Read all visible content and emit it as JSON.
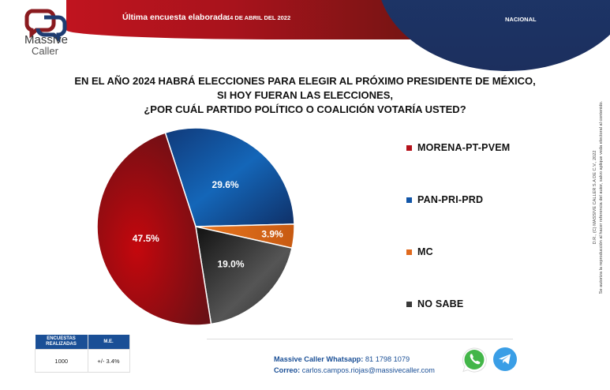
{
  "header": {
    "brand_line1": "Massive",
    "brand_line2": "Caller",
    "survey_label": "Última encuesta elaborada:",
    "survey_date": "14 DE ABRIL DEL 2022",
    "scope": "NACIONAL"
  },
  "question": {
    "line1": "EN EL AÑO 2024 HABRÁ ELECCIONES PARA ELEGIR AL PRÓXIMO PRESIDENTE DE MÉXICO,",
    "line2": "SI HOY FUERAN LAS ELECCIONES,",
    "line3": "¿POR CUÁL PARTIDO POLÍTICO O COALICIÓN VOTARÍA USTED?"
  },
  "side_note": {
    "line1": "D.R., (C) MASSIVE CALLER S.A DE C.V., 2022",
    "line2": "Se autoriza la reproducción al hacer referencia del autor, salvo aplique veda electoral al contenido."
  },
  "chart_data": {
    "type": "pie",
    "title": "¿POR CUÁL PARTIDO POLÍTICO O COALICIÓN VOTARÍA USTED?",
    "categories": [
      "MORENA-PT-PVEM",
      "PAN-PRI-PRD",
      "MC",
      "NO SABE"
    ],
    "values": [
      47.5,
      29.6,
      3.9,
      19.0
    ],
    "labels": [
      "47.5%",
      "29.6%",
      "3.9%",
      "19.0%"
    ],
    "colors": [
      "#b5121b",
      "#1256a8",
      "#e06a1e",
      "#3a3a3a"
    ],
    "legend_position": "right",
    "slice_order_clockwise_from_top": [
      "PAN-PRI-PRD",
      "MC",
      "NO SABE",
      "MORENA-PT-PVEM"
    ]
  },
  "stats": {
    "headers": [
      "ENCUESTAS REALIZADAS",
      "M.E."
    ],
    "values": [
      "1000",
      "+/- 3.4%"
    ]
  },
  "contact": {
    "whatsapp_label": "Massive Caller Whatsapp:",
    "whatsapp_number": "81 1798 1079",
    "email_label": "Correo:",
    "email": "carlos.campos.riojas@massivecaller.com"
  },
  "icons": {
    "whatsapp": "whatsapp-icon",
    "telegram": "telegram-icon"
  }
}
